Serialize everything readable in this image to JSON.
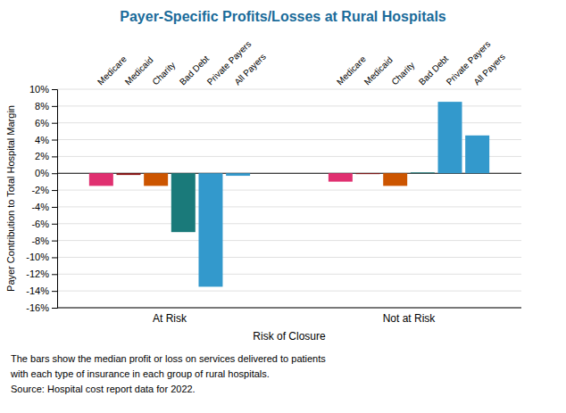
{
  "chart_data": {
    "type": "bar",
    "title": "Payer-Specific Profits/Losses at Rural Hospitals",
    "xlabel": "Risk of Closure",
    "ylabel": "Payer Contribution to Total Hospital Margin",
    "annotations": [
      "The bars show the median profit or loss on services delivered to patients",
      "with each type of insurance in each group of rural hospitals.",
      "Source:  Hospital cost report data for 2022."
    ],
    "categories": [
      "Medicare",
      "Medicaid",
      "Charity",
      "Bad Debt",
      "Private Payers",
      "All Payers"
    ],
    "series": [
      {
        "name": "At Risk",
        "values": [
          -1.5,
          -0.2,
          -1.5,
          -7.0,
          -13.5,
          -0.3
        ],
        "colors": [
          "#E03070",
          "#8B1010",
          "#CC5500",
          "#1A7A7A",
          "#3399CC",
          "#3399CC"
        ]
      },
      {
        "name": "Not at Risk",
        "values": [
          -1.0,
          -0.1,
          -1.5,
          0.1,
          8.5,
          4.5
        ],
        "colors": [
          "#E03070",
          "#8B1010",
          "#CC5500",
          "#1A7A7A",
          "#3399CC",
          "#3399CC"
        ]
      }
    ],
    "ylim": [
      -16,
      10
    ],
    "yticks": [
      {
        "value": -16,
        "label": "-16%"
      },
      {
        "value": -14,
        "label": "-14%"
      },
      {
        "value": -12,
        "label": "-12%"
      },
      {
        "value": -10,
        "label": "-10%"
      },
      {
        "value": -8,
        "label": "-8%"
      },
      {
        "value": -6,
        "label": "-6%"
      },
      {
        "value": -4,
        "label": "-4%"
      },
      {
        "value": -2,
        "label": "-2%"
      },
      {
        "value": 0,
        "label": "0%"
      },
      {
        "value": 2,
        "label": "2%"
      },
      {
        "value": 4,
        "label": "4%"
      },
      {
        "value": 6,
        "label": "6%"
      },
      {
        "value": 8,
        "label": "8%"
      },
      {
        "value": 10,
        "label": "10%"
      }
    ],
    "grid": true
  }
}
